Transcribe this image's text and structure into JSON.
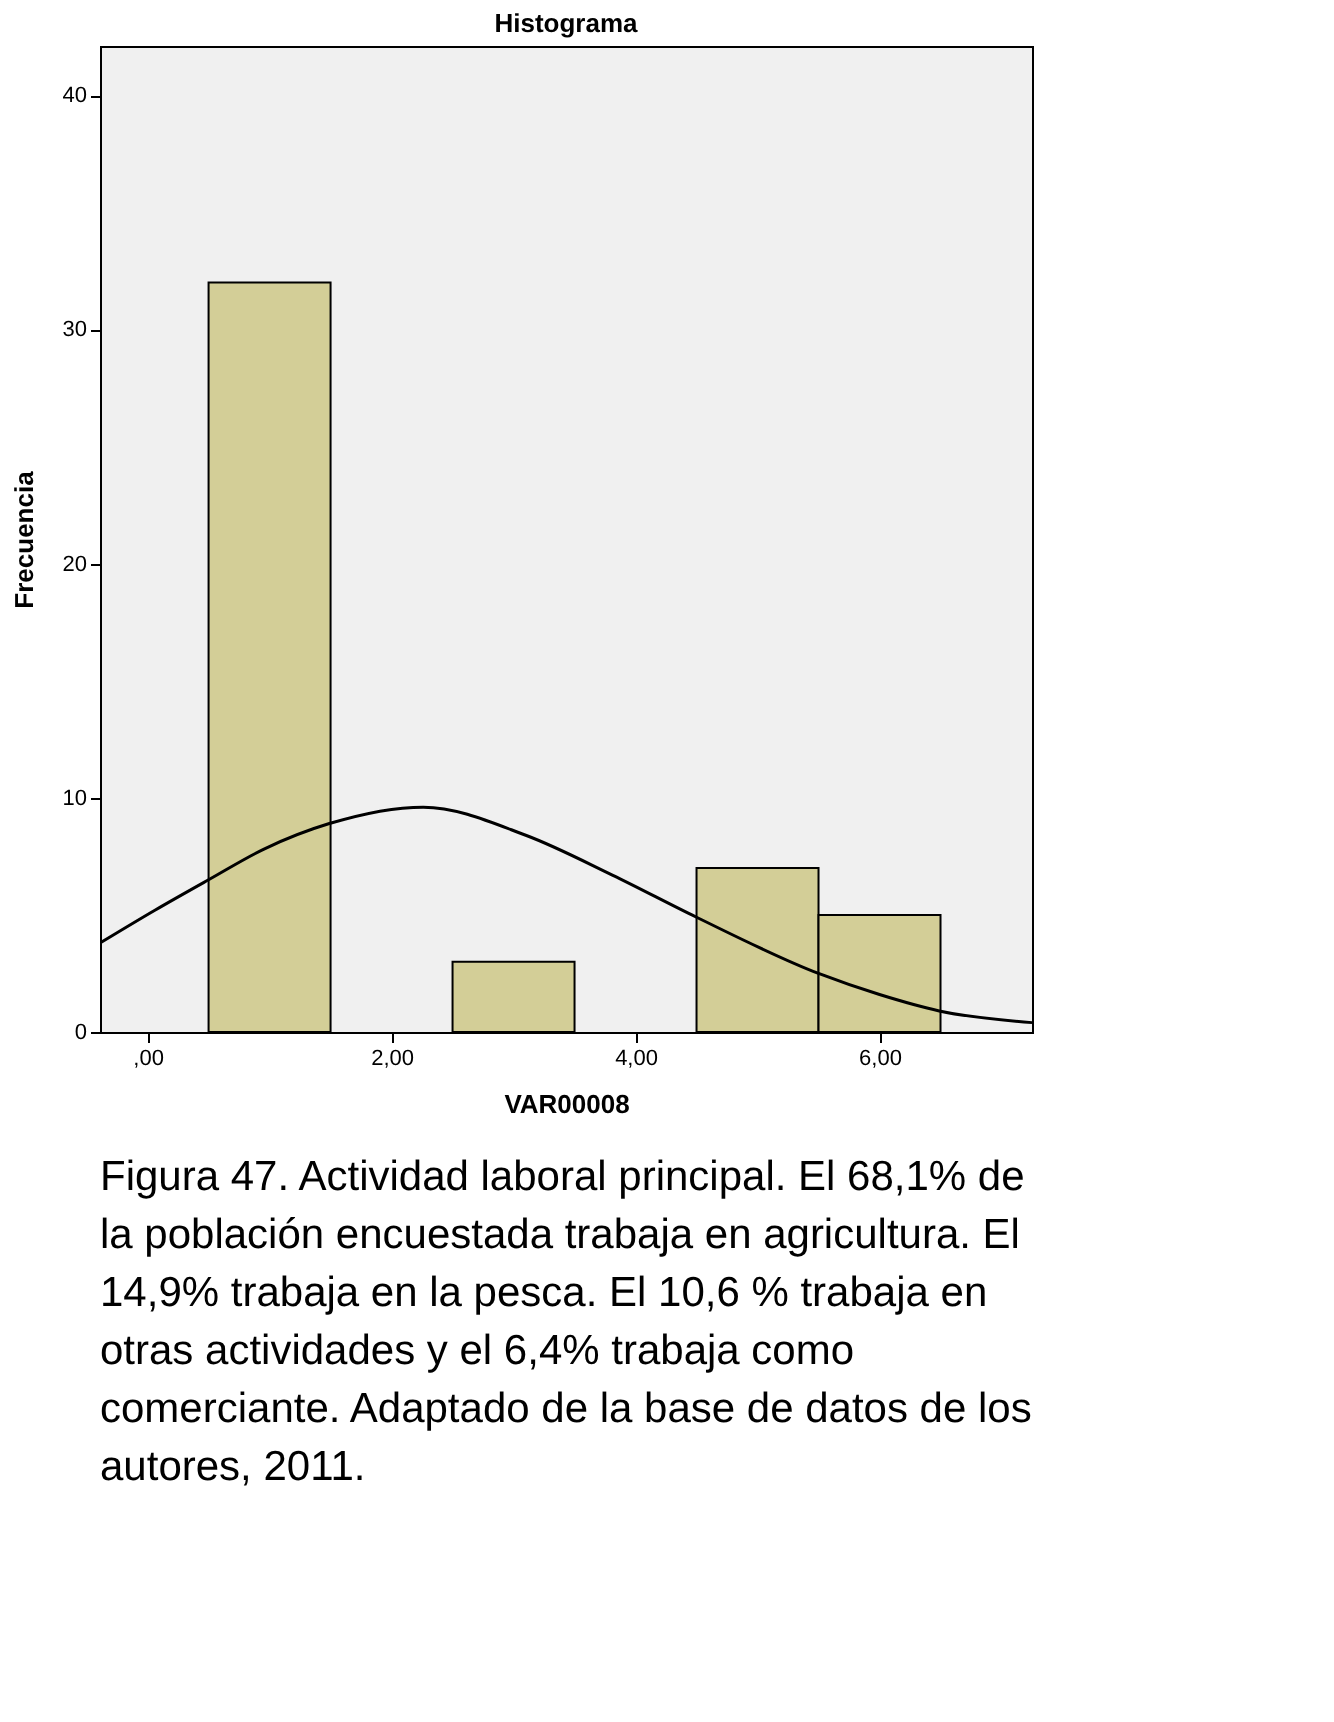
{
  "chart_data": {
    "type": "histogram",
    "title": "Histograma",
    "xlabel": "VAR00008",
    "ylabel": "Frecuencia",
    "bins": [
      0.5,
      1.5,
      2.5,
      3.5,
      4.5,
      5.5,
      6.5
    ],
    "values": [
      32,
      0,
      3,
      0,
      7,
      5
    ],
    "color": "#d3ce97",
    "series": [
      {
        "type": "line",
        "color": "#000000",
        "x": [
          -0.39,
          0.06,
          0.5,
          0.95,
          1.49,
          2.26,
          3.1,
          3.81,
          4.5,
          5.5,
          6.0,
          6.49,
          7.25
        ],
        "values": [
          3.8,
          5.2,
          6.5,
          7.8,
          8.9,
          9.6,
          8.4,
          6.7,
          4.9,
          2.5,
          1.6,
          0.9,
          0.4
        ]
      }
    ],
    "xlim": [
      -0.39,
      7.25
    ],
    "ylim": [
      0,
      42.1
    ],
    "xticks": [
      {
        "value": 0,
        "label": ",00"
      },
      {
        "value": 2,
        "label": "2,00"
      },
      {
        "value": 4,
        "label": "4,00"
      },
      {
        "value": 6,
        "label": "6,00"
      }
    ],
    "yticks": [
      0,
      10,
      20,
      30,
      40
    ],
    "grid": false,
    "annotations": [
      "Figura 47. Actividad laboral principal. El 68,1% de la población encuestada trabaja en agricultura. El 14,9% trabaja en la pesca. El 10,6 % trabaja en otras actividades y el 6,4% trabaja como comerciante. Adaptado de la base de datos de los autores, 2011."
    ]
  }
}
